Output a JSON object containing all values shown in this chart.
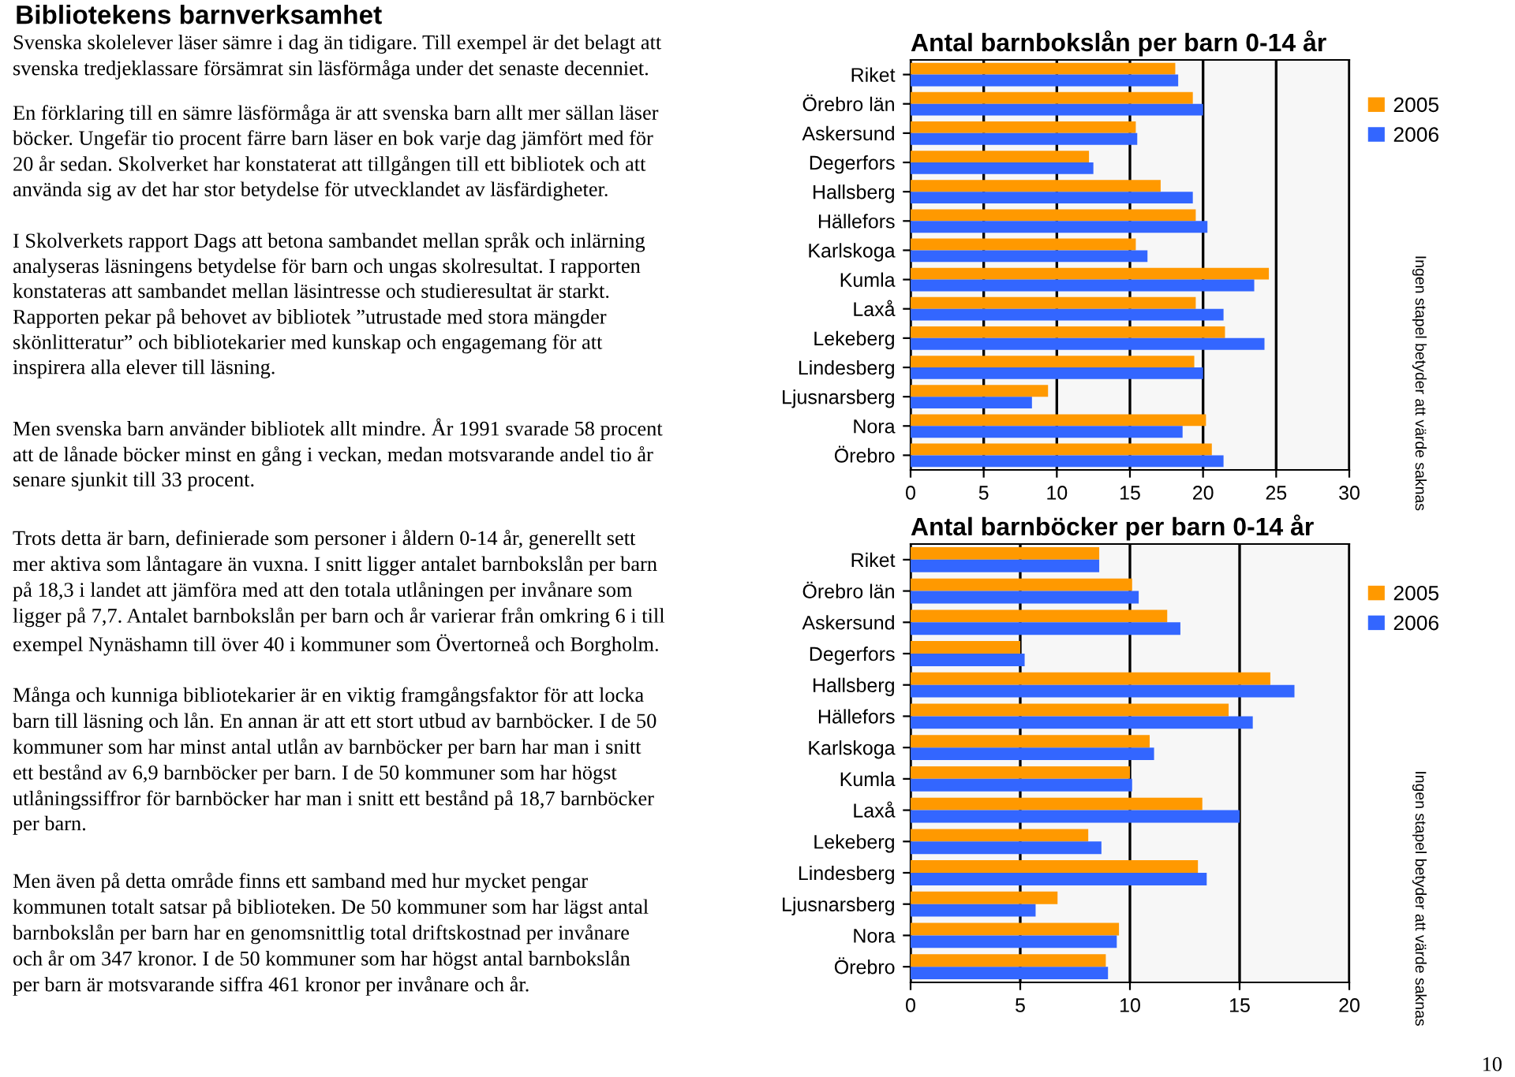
{
  "chart_data": [
    {
      "type": "other",
      "title": "Bibliotekens barnverksamhet",
      "annotations": [
        "Svenska skolelever läser sämre i dag än tidigare. Till exempel är det belagt att\nsvenska tredjeklassare försämrat sin läsförmåga under det senaste decenniet.",
        "En förklaring till en sämre läsförmåga är att svenska barn allt mer sällan läser\nböcker. Ungefär tio procent färre barn läser en bok varje dag jämfört med för\n20 år sedan. Skolverket har konstaterat att tillgången till ett bibliotek och att\nanvända sig av det har stor betydelse för utvecklandet av läsfärdigheter.",
        "I Skolverkets rapport Dags att betona sambandet mellan språk och inlärning\nanalyseras läsningens betydelse för barn och ungas skolresultat. I rapporten\nkonstateras att sambandet mellan läsintresse och studieresultat är starkt.\nRapporten pekar på behovet av bibliotek ”utrustade med stora mängder\nskönlitteratur” och bibliotekarier med kunskap och engagemang för att\ninspirera alla elever till läsning.",
        "Men svenska barn använder bibliotek allt mindre. År 1991 svarade 58 procent\natt de lånade böcker minst en gång i veckan, medan motsvarande andel tio år\nsenare sjunkit till 33 procent.",
        "Trots detta är barn, definierade som personer i åldern 0-14 år, generellt sett\nmer aktiva som låntagare än vuxna. I snitt ligger antalet barnbokslån per barn\npå 18,3 i landet att jämföra med att den totala utlåningen per invånare som\nligger på 7,7. Antalet barnbokslån per barn och år varierar från omkring 6 i till\nexempel Nynäshamn till över 40 i kommuner som Övertorneå och Borgholm.",
        "Många och kunniga bibliotekarier är en viktig framgångsfaktor för att locka\nbarn till läsning och lån. En annan är att ett stort utbud av barnböcker. I de 50\nkommuner som har minst antal utlån av barnböcker per barn har man i snitt\nett bestånd av 6,9 barnböcker per barn. I de 50 kommuner som har högst\nutlåningssiffror för barnböcker har man i snitt ett bestånd på 18,7 barnböcker\nper barn.",
        "Men även på detta område finns ett samband med hur mycket pengar\nkommunen totalt satsar på biblioteken. De 50 kommuner som har lägst antal\nbarnbokslån per barn har en genomsnittlig total driftskostnad per invånare\noch år om 347 kronor. I de 50 kommuner som har högst antal barnbokslån\nper barn är motsvarande siffra 461 kronor per invånare och år.",
        "10"
      ]
    },
    {
      "type": "bar",
      "orientation": "horizontal",
      "title": "Antal barnbokslån per barn 0-14 år",
      "categories": [
        "Riket",
        "Örebro län",
        "Askersund",
        "Degerfors",
        "Hallsberg",
        "Hällefors",
        "Karlskoga",
        "Kumla",
        "Laxå",
        "Lekeberg",
        "Lindesberg",
        "Ljusnarsberg",
        "Nora",
        "Örebro"
      ],
      "series": [
        {
          "name": "2005",
          "color": "#ff9900",
          "values": [
            18.1,
            19.3,
            15.4,
            12.2,
            17.1,
            19.5,
            15.4,
            24.5,
            19.5,
            21.5,
            19.4,
            9.4,
            20.2,
            20.6
          ]
        },
        {
          "name": "2006",
          "color": "#3366ff",
          "values": [
            18.3,
            20.0,
            15.5,
            12.5,
            19.3,
            20.3,
            16.2,
            23.5,
            21.4,
            24.2,
            20.0,
            8.3,
            18.6,
            21.4
          ]
        }
      ],
      "xlim": [
        0,
        30
      ],
      "xticks": [
        0,
        5,
        10,
        15,
        20,
        25,
        30
      ],
      "grid": "x",
      "legend": "right",
      "annotations": [
        "Ingen stapel betyder att värde saknas"
      ]
    },
    {
      "type": "bar",
      "orientation": "horizontal",
      "title": "Antal barnböcker per barn 0-14 år",
      "categories": [
        "Riket",
        "Örebro län",
        "Askersund",
        "Degerfors",
        "Hallsberg",
        "Hällefors",
        "Karlskoga",
        "Kumla",
        "Laxå",
        "Lekeberg",
        "Lindesberg",
        "Ljusnarsberg",
        "Nora",
        "Örebro"
      ],
      "series": [
        {
          "name": "2005",
          "color": "#ff9900",
          "values": [
            8.6,
            10.1,
            11.7,
            5.0,
            16.4,
            14.5,
            10.9,
            10.0,
            13.3,
            8.1,
            13.1,
            6.7,
            9.5,
            8.9
          ]
        },
        {
          "name": "2006",
          "color": "#3366ff",
          "values": [
            8.6,
            10.4,
            12.3,
            5.2,
            17.5,
            15.6,
            11.1,
            10.1,
            15.0,
            8.7,
            13.5,
            5.7,
            9.4,
            9.0
          ]
        }
      ],
      "xlim": [
        0,
        20
      ],
      "xticks": [
        0,
        5,
        10,
        15,
        20
      ],
      "grid": "x",
      "legend": "right",
      "annotations": [
        "Ingen stapel betyder att värde saknas"
      ]
    }
  ]
}
